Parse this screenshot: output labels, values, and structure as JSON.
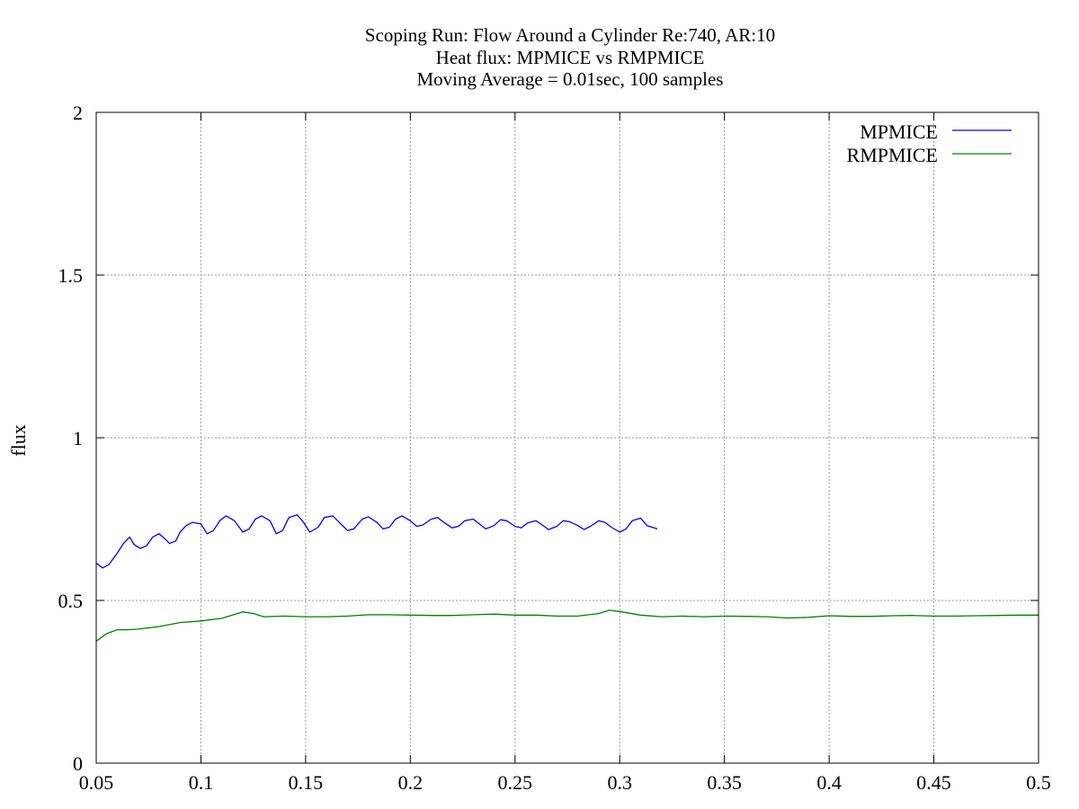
{
  "chart_data": {
    "type": "line",
    "title_lines": [
      "Scoping Run: Flow Around a Cylinder Re:740, AR:10",
      "Heat flux: MPMICE vs RMPMICE",
      "Moving Average = 0.01sec, 100 samples"
    ],
    "xlabel": "",
    "ylabel": "flux",
    "xlim": [
      0.05,
      0.5
    ],
    "ylim": [
      0,
      2
    ],
    "x_ticks": [
      0.05,
      0.1,
      0.15,
      0.2,
      0.25,
      0.3,
      0.35,
      0.4,
      0.45,
      0.5
    ],
    "x_tick_labels": [
      "0.05",
      "0.1",
      "0.15",
      "0.2",
      "0.25",
      "0.3",
      "0.35",
      "0.4",
      "0.45",
      "0.5"
    ],
    "y_ticks": [
      0,
      0.5,
      1,
      1.5,
      2
    ],
    "y_tick_labels": [
      "0",
      "0.5",
      "1",
      "1.5",
      "2"
    ],
    "grid": true,
    "legend_position": "top-right",
    "series": [
      {
        "name": "MPMICE",
        "color": "#0000ff",
        "x": [
          0.05,
          0.053,
          0.056,
          0.06,
          0.063,
          0.066,
          0.068,
          0.071,
          0.074,
          0.077,
          0.08,
          0.083,
          0.085,
          0.088,
          0.09,
          0.093,
          0.096,
          0.1,
          0.103,
          0.106,
          0.109,
          0.112,
          0.116,
          0.12,
          0.123,
          0.126,
          0.129,
          0.133,
          0.136,
          0.139,
          0.142,
          0.146,
          0.149,
          0.152,
          0.156,
          0.159,
          0.163,
          0.166,
          0.17,
          0.173,
          0.177,
          0.18,
          0.184,
          0.187,
          0.19,
          0.193,
          0.196,
          0.2,
          0.203,
          0.206,
          0.21,
          0.213,
          0.216,
          0.22,
          0.223,
          0.226,
          0.23,
          0.233,
          0.236,
          0.24,
          0.243,
          0.246,
          0.25,
          0.253,
          0.256,
          0.26,
          0.263,
          0.266,
          0.27,
          0.273,
          0.276,
          0.28,
          0.283,
          0.286,
          0.29,
          0.293,
          0.296,
          0.3,
          0.303,
          0.306,
          0.31,
          0.313,
          0.318
        ],
        "y": [
          0.615,
          0.6,
          0.61,
          0.645,
          0.675,
          0.695,
          0.672,
          0.66,
          0.668,
          0.695,
          0.705,
          0.688,
          0.675,
          0.683,
          0.71,
          0.73,
          0.74,
          0.735,
          0.705,
          0.715,
          0.745,
          0.76,
          0.745,
          0.71,
          0.72,
          0.75,
          0.76,
          0.745,
          0.705,
          0.715,
          0.755,
          0.763,
          0.74,
          0.71,
          0.725,
          0.755,
          0.76,
          0.74,
          0.715,
          0.72,
          0.75,
          0.757,
          0.74,
          0.72,
          0.725,
          0.75,
          0.76,
          0.745,
          0.728,
          0.732,
          0.75,
          0.755,
          0.74,
          0.723,
          0.728,
          0.745,
          0.75,
          0.735,
          0.72,
          0.73,
          0.748,
          0.745,
          0.728,
          0.723,
          0.738,
          0.745,
          0.732,
          0.718,
          0.728,
          0.745,
          0.742,
          0.73,
          0.718,
          0.728,
          0.745,
          0.74,
          0.725,
          0.71,
          0.72,
          0.745,
          0.753,
          0.73,
          0.72
        ]
      },
      {
        "name": "RMPMICE",
        "color": "#008000",
        "x": [
          0.05,
          0.055,
          0.06,
          0.065,
          0.07,
          0.08,
          0.09,
          0.1,
          0.11,
          0.115,
          0.12,
          0.125,
          0.13,
          0.14,
          0.15,
          0.16,
          0.17,
          0.18,
          0.19,
          0.2,
          0.21,
          0.22,
          0.23,
          0.24,
          0.25,
          0.26,
          0.27,
          0.28,
          0.29,
          0.295,
          0.3,
          0.31,
          0.32,
          0.33,
          0.34,
          0.35,
          0.36,
          0.37,
          0.38,
          0.39,
          0.4,
          0.41,
          0.42,
          0.43,
          0.44,
          0.45,
          0.46,
          0.47,
          0.48,
          0.49,
          0.5
        ],
        "y": [
          0.375,
          0.398,
          0.41,
          0.41,
          0.412,
          0.42,
          0.432,
          0.437,
          0.445,
          0.455,
          0.465,
          0.46,
          0.45,
          0.452,
          0.45,
          0.45,
          0.452,
          0.456,
          0.456,
          0.455,
          0.454,
          0.454,
          0.456,
          0.458,
          0.455,
          0.455,
          0.452,
          0.452,
          0.46,
          0.47,
          0.466,
          0.455,
          0.45,
          0.452,
          0.45,
          0.452,
          0.451,
          0.45,
          0.446,
          0.448,
          0.453,
          0.451,
          0.451,
          0.453,
          0.454,
          0.452,
          0.452,
          0.453,
          0.454,
          0.455,
          0.455
        ]
      }
    ]
  }
}
